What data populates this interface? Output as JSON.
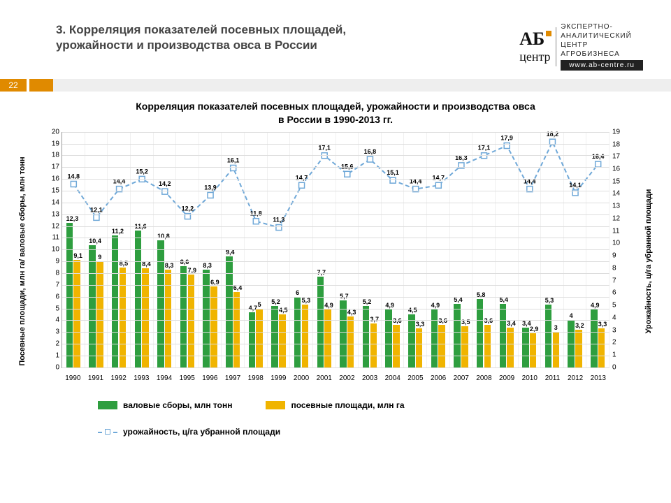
{
  "page_number": "22",
  "slide_title": "3. Корреляция показателей посевных площадей, урожайности и производства овса в России",
  "logo": {
    "top": "АБ",
    "bottom": "центр",
    "subtitle": "ЭКСПЕРТНО-\nАНАЛИТИЧЕСКИЙ\nЦЕНТР\nАГРОБИЗНЕСА",
    "url": "www.ab-centre.ru"
  },
  "chart": {
    "title": "Корреляция показателей посевных площадей, урожайности и производства овса\nв России в 1990-2013 гг.",
    "y_left_label": "Посевные площади, млн га/ валовые сборы, млн тонн",
    "y_right_label": "Урожайность, ц/га убранной площади",
    "y_left": {
      "min": 0,
      "max": 20,
      "step": 1
    },
    "y_right": {
      "min": 0,
      "max": 19,
      "step": 1
    },
    "years": [
      "1990",
      "1991",
      "1992",
      "1993",
      "1994",
      "1995",
      "1996",
      "1997",
      "1998",
      "1999",
      "2000",
      "2001",
      "2002",
      "2003",
      "2004",
      "2005",
      "2006",
      "2007",
      "2008",
      "2009",
      "2010",
      "2011",
      "2012",
      "2013"
    ],
    "series": {
      "green": {
        "label": "валовые сборы, млн тонн",
        "color": "#2e9e3f",
        "values": [
          12.3,
          10.4,
          11.2,
          11.6,
          10.8,
          8.6,
          8.3,
          9.4,
          4.7,
          5.2,
          6.0,
          7.7,
          5.7,
          5.2,
          4.9,
          4.5,
          4.9,
          5.4,
          5.8,
          5.4,
          3.4,
          5.3,
          4.0,
          4.9
        ]
      },
      "yellow": {
        "label": "посевные площади, млн га",
        "color": "#f0b400",
        "values": [
          9.1,
          9.0,
          8.5,
          8.4,
          8.3,
          7.9,
          6.9,
          6.4,
          5.0,
          4.5,
          5.3,
          4.9,
          4.3,
          3.7,
          3.6,
          3.3,
          3.6,
          3.5,
          3.6,
          3.4,
          2.9,
          3.0,
          3.2,
          3.3
        ]
      },
      "line": {
        "label": "урожайность, ц/га убранной площади",
        "color": "#6fa8d8",
        "values": [
          14.8,
          12.1,
          14.4,
          15.2,
          14.2,
          12.2,
          13.9,
          16.1,
          11.8,
          11.3,
          14.7,
          17.1,
          15.6,
          16.8,
          15.1,
          14.4,
          14.7,
          16.3,
          17.1,
          17.9,
          14.4,
          18.2,
          14.1,
          16.4
        ]
      }
    },
    "grid_color": "#dddddd",
    "background": "#ffffff"
  }
}
